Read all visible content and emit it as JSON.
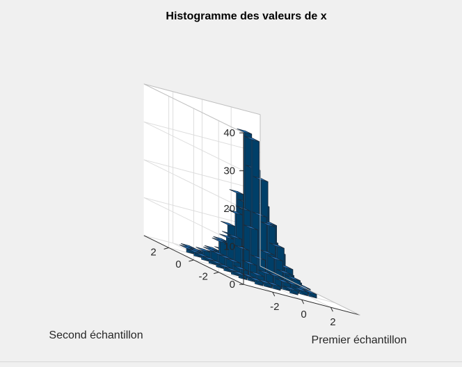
{
  "chart_data": {
    "type": "bar3",
    "title": "Histogramme des valeurs de x",
    "xlabel": "Premier échantillon",
    "ylabel": "Second échantillon",
    "zlabel": "",
    "x_tick_labels": [
      "-2",
      "0",
      "2"
    ],
    "x_tick_values": [
      -2,
      0,
      2
    ],
    "y_tick_labels": [
      "-2",
      "0",
      "2"
    ],
    "y_tick_values": [
      -2,
      0,
      2
    ],
    "z_tick_labels": [
      "0",
      "10",
      "20",
      "30",
      "40"
    ],
    "z_tick_values": [
      0,
      10,
      20,
      30,
      40
    ],
    "xlim": [
      -4,
      4
    ],
    "ylim": [
      -4,
      4
    ],
    "zlim": [
      0,
      40
    ],
    "grid": true,
    "bar_color": "#0072bd",
    "bin_centers_x": [
      -3.0,
      -2.4,
      -1.8,
      -1.2,
      -0.6,
      0.0,
      0.6,
      1.2,
      1.8,
      2.4,
      3.0
    ],
    "bin_centers_y": [
      -3.0,
      -2.4,
      -1.8,
      -1.2,
      -0.6,
      0.0,
      0.6,
      1.2,
      1.8,
      2.4,
      3.0
    ],
    "counts": [
      [
        0,
        0,
        0,
        0,
        0,
        0,
        0,
        0,
        0,
        0,
        0
      ],
      [
        0,
        0,
        1,
        1,
        1,
        0,
        1,
        0,
        0,
        0,
        0
      ],
      [
        0,
        1,
        1,
        2,
        3,
        3,
        2,
        2,
        1,
        1,
        0
      ],
      [
        0,
        1,
        2,
        4,
        6,
        8,
        7,
        4,
        3,
        1,
        0
      ],
      [
        0,
        1,
        3,
        7,
        13,
        17,
        15,
        10,
        5,
        2,
        1
      ],
      [
        0,
        1,
        3,
        9,
        17,
        36,
        26,
        15,
        8,
        3,
        1
      ],
      [
        0,
        1,
        3,
        8,
        15,
        37,
        28,
        19,
        10,
        4,
        1
      ],
      [
        0,
        1,
        3,
        6,
        11,
        20,
        18,
        12,
        6,
        2,
        0
      ],
      [
        0,
        1,
        2,
        3,
        6,
        8,
        7,
        5,
        3,
        1,
        0
      ],
      [
        0,
        1,
        1,
        1,
        2,
        3,
        2,
        2,
        1,
        1,
        0
      ],
      [
        0,
        0,
        1,
        0,
        1,
        1,
        1,
        0,
        0,
        0,
        0
      ]
    ]
  }
}
